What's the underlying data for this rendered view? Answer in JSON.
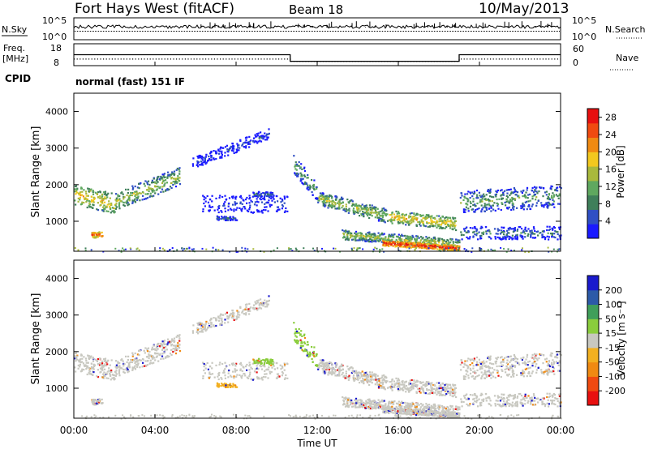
{
  "header": {
    "title": "Fort Hays West (fitACF)",
    "beam": "Beam 18",
    "date": "10/May/2013",
    "cpid_label": "CPID",
    "cpid_value": "normal (fast) 151 IF"
  },
  "top_panels": {
    "nsky_label": "N.Sky",
    "nsearch_label": "N.Search",
    "freq_label_1": "Freq.",
    "freq_label_2": "[MHz]",
    "nave_label": "Nave",
    "noise_ticks_left": [
      "10^5",
      "10^0"
    ],
    "noise_ticks_right": [
      "10^5",
      "10^0"
    ],
    "freq_ticks": [
      "18",
      "8"
    ],
    "nave_ticks": [
      "60",
      "0"
    ]
  },
  "colors": {
    "power_scale": [
      "#1a1aff",
      "#2f4fc4",
      "#3f7f5a",
      "#5fa85f",
      "#a9b93c",
      "#f2c81e",
      "#f08a12",
      "#f04a10",
      "#e81010"
    ],
    "velocity_scale": [
      "#e81010",
      "#f04a10",
      "#f08a12",
      "#f2b020",
      "#c8c8c0",
      "#8acd3c",
      "#3f9f5a",
      "#2c5aa8",
      "#1a1acc"
    ]
  },
  "chart_data": [
    {
      "type": "line",
      "panel": "noise",
      "ylabel": "N.Sky",
      "y2label": "N.Search",
      "yscale": "log",
      "ylim": [
        1,
        100000
      ],
      "x": [
        "00:00",
        "04:00",
        "08:00",
        "12:00",
        "16:00",
        "20:00",
        "00:00"
      ],
      "series": []
    },
    {
      "type": "line",
      "panel": "frequency",
      "ylabel": "Freq. [MHz]",
      "y2label": "Nave",
      "ylim": [
        8,
        18
      ],
      "y2lim": [
        0,
        60
      ],
      "series": [
        {
          "name": "Freq.",
          "x": [
            "00:00",
            "10:40",
            "10:40",
            "19:00",
            "19:00",
            "24:00"
          ],
          "values": [
            13.0,
            13.0,
            10.0,
            10.0,
            13.0,
            13.0
          ]
        },
        {
          "name": "Nave",
          "x": [
            "00:00",
            "10:40",
            "10:40",
            "19:00",
            "19:00",
            "24:00"
          ],
          "values": [
            18,
            18,
            12,
            12,
            18,
            18
          ]
        }
      ]
    },
    {
      "type": "heatmap",
      "panel": "power",
      "ylabel": "Slant Range [km]",
      "colorbar_label": "Power [dB]",
      "ylim": [
        180,
        4500
      ],
      "yticks": [
        "1000",
        "2000",
        "3000",
        "4000"
      ],
      "colorbar_ticks": [
        "4",
        "8",
        "12",
        "16",
        "20",
        "24",
        "28"
      ],
      "colorbar_range": [
        0,
        30
      ]
    },
    {
      "type": "heatmap",
      "panel": "velocity",
      "xlabel": "Time UT",
      "ylabel": "Slant Range [km]",
      "colorbar_label": "Velocity [m s⁻¹]",
      "ylim": [
        180,
        4500
      ],
      "yticks": [
        "1000",
        "2000",
        "3000",
        "4000"
      ],
      "xticks": [
        "00:00",
        "04:00",
        "08:00",
        "12:00",
        "16:00",
        "20:00",
        "00:00"
      ],
      "colorbar_ticks": [
        "200",
        "100",
        "50",
        "15",
        "-15",
        "-50",
        "-100",
        "-200"
      ]
    }
  ]
}
